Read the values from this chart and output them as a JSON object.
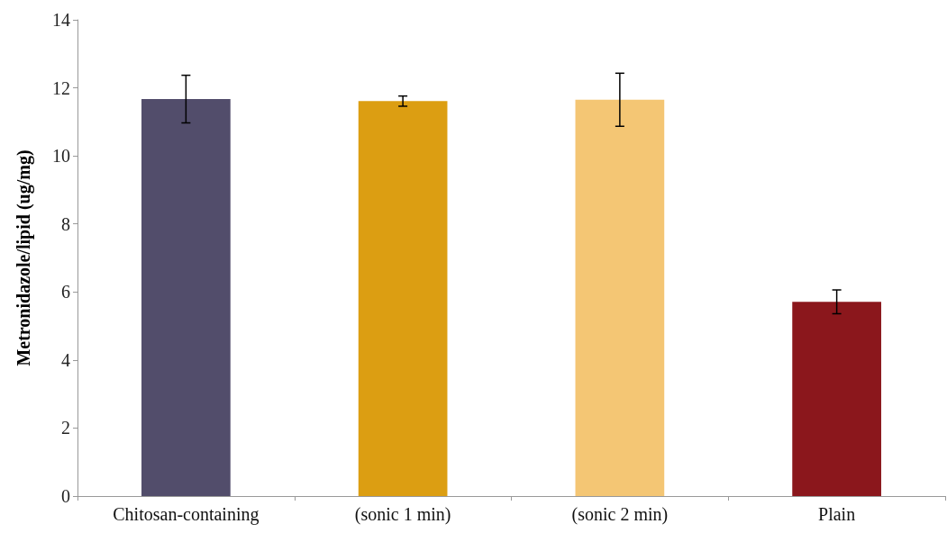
{
  "chart_data": {
    "type": "bar",
    "ylabel": "Metronidazole/lipid (ug/mg)",
    "categories": [
      "Chitosan-containing",
      "(sonic 1 min)",
      "(sonic 2 min)",
      "Plain"
    ],
    "values": [
      11.67,
      11.61,
      11.65,
      5.71
    ],
    "colors": [
      "#524d6b",
      "#dc9e12",
      "#f4c674",
      "#8b171c"
    ],
    "errors": [
      0.7,
      0.15,
      0.78,
      0.35
    ],
    "ylim": [
      0,
      14
    ],
    "yticks": [
      0,
      2,
      4,
      6,
      8,
      10,
      12,
      14
    ],
    "grid": false
  }
}
